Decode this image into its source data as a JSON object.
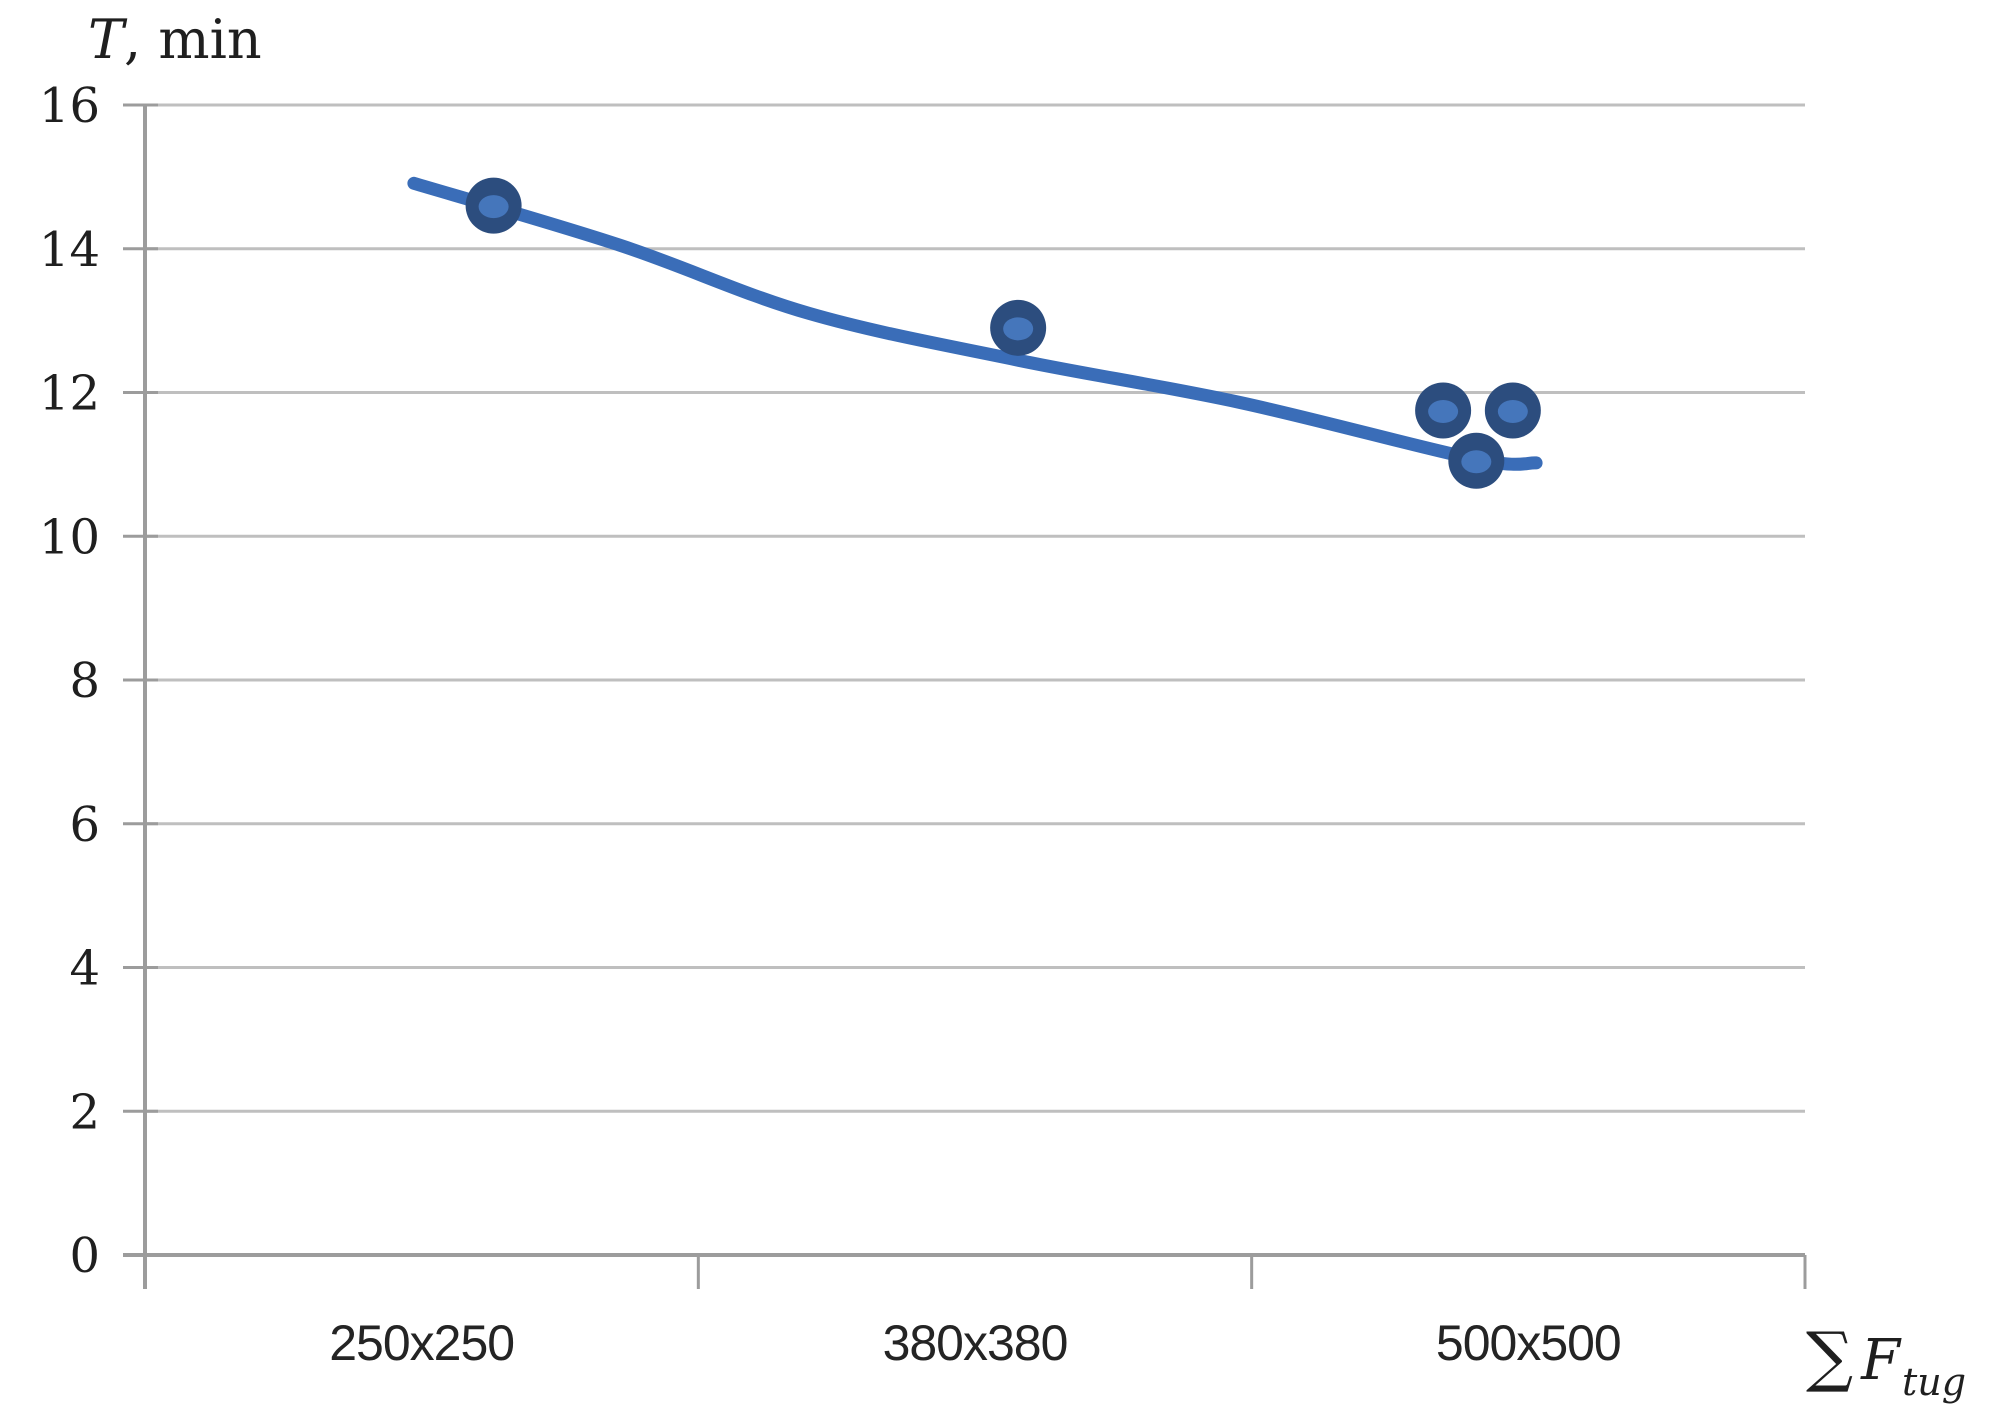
{
  "y_axis": {
    "title_symbol": "T",
    "title_rest": ", min",
    "min": 0,
    "max": 16,
    "step": 2
  },
  "x_axis": {
    "title_sigma": "∑",
    "title_symbol": "F",
    "title_subscript": "tug"
  },
  "chart_data": {
    "type": "scatter",
    "title": "",
    "ylabel": "T, min",
    "xlabel": "∑ F tug",
    "ylim": [
      0,
      16
    ],
    "y_ticks": [
      0,
      2,
      4,
      6,
      8,
      10,
      12,
      14,
      16
    ],
    "categories": [
      "250x250",
      "380x380",
      "500x500"
    ],
    "grid": true,
    "legend": false,
    "points": [
      {
        "category": "250x250",
        "x_frac": 0.21,
        "T": 14.6
      },
      {
        "category": "380x380",
        "x_frac": 0.526,
        "T": 12.9
      },
      {
        "category": "500x500",
        "x_frac": 0.782,
        "T": 11.75
      },
      {
        "category": "500x500",
        "x_frac": 0.824,
        "T": 11.75
      },
      {
        "category": "500x500",
        "x_frac": 0.802,
        "T": 11.05
      }
    ],
    "trendline": {
      "shape": "smooth",
      "anchors": [
        {
          "x_frac": 0.162,
          "T": 14.91
        },
        {
          "x_frac": 0.286,
          "T": 14.05
        },
        {
          "x_frac": 0.4,
          "T": 13.1
        },
        {
          "x_frac": 0.526,
          "T": 12.45
        },
        {
          "x_frac": 0.66,
          "T": 11.86
        },
        {
          "x_frac": 0.8,
          "T": 11.08
        },
        {
          "x_frac": 0.838,
          "T": 11.02
        }
      ]
    },
    "colors": {
      "line": "#3a6db8",
      "marker_ring": "#2c4d7e",
      "marker_core": "#4576bb",
      "gridline": "#bfbfbf",
      "axis": "#9c9c9c",
      "text": "#1f1f1f"
    }
  }
}
